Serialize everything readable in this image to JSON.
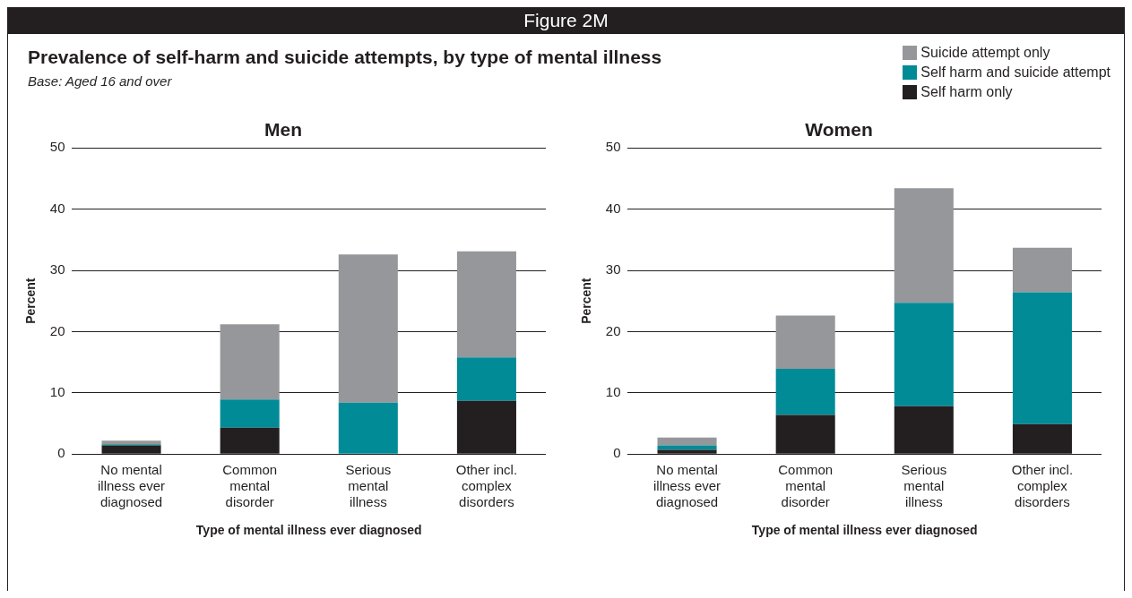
{
  "chart_data": [
    {
      "type": "other",
      "title": "Prevalence of self-harm and suicide attempts, by type of mental illness",
      "subtitle": "Base: Aged 16 and over",
      "annotations": [
        "Figure 2M"
      ]
    },
    {
      "type": "bar",
      "title": "Men",
      "xlabel": "Type of mental illness ever diagnosed",
      "ylabel": "Percent",
      "stacked": true,
      "grid": "y",
      "ylim": [
        0,
        50
      ],
      "yticks": [
        0,
        10,
        20,
        30,
        40,
        50
      ],
      "categories": [
        "No mental illness ever diagnosed",
        "Common mental disorder",
        "Serious mental illness",
        "Other incl. complex disorders"
      ],
      "series": [
        {
          "color": "#231f20",
          "values": [
            1.4,
            4.3,
            0,
            8.7
          ]
        },
        {
          "color": "#008b96",
          "values": [
            0.2,
            4.6,
            8.4,
            7.1
          ]
        },
        {
          "color": "#96979b",
          "values": [
            0.6,
            12.3,
            24.2,
            17.3
          ]
        }
      ]
    },
    {
      "type": "bar",
      "title": "Women",
      "xlabel": "Type of mental illness ever diagnosed",
      "ylabel": "Percent",
      "stacked": true,
      "legend": "top right",
      "grid": "y",
      "ylim": [
        0,
        50
      ],
      "yticks": [
        0,
        10,
        20,
        30,
        40,
        50
      ],
      "categories": [
        "No mental illness ever diagnosed",
        "Common mental disorder",
        "Serious mental illness",
        "Other incl. complex disorders"
      ],
      "series": [
        {
          "name": "Self harm only",
          "color": "#231f20",
          "values": [
            0.7,
            6.4,
            7.8,
            4.9
          ]
        },
        {
          "name": "Self harm and suicide attempt",
          "color": "#008b96",
          "values": [
            0.7,
            7.5,
            16.9,
            21.5
          ]
        },
        {
          "name": "Suicide attempt only",
          "color": "#96979b",
          "values": [
            1.3,
            8.7,
            18.7,
            7.3
          ]
        }
      ]
    }
  ]
}
